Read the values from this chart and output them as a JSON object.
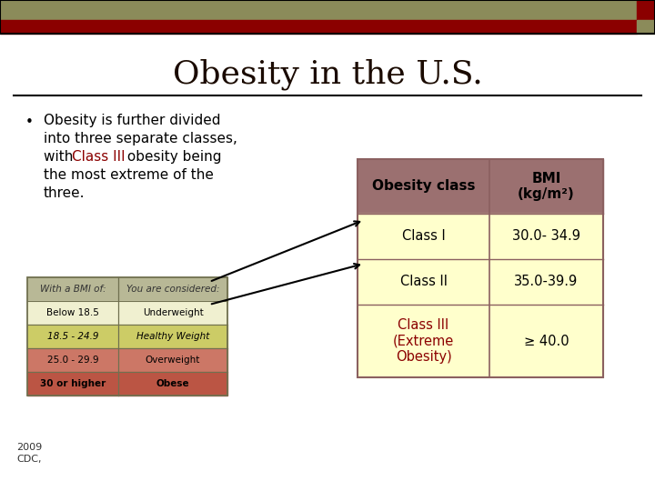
{
  "title": "Obesity in the U.S.",
  "title_color": "#1a0a00",
  "title_fontsize": 26,
  "bg_color": "#ffffff",
  "header_bar1_color": "#8b8b5a",
  "header_bar2_color": "#8b0000",
  "header_bar_small2_color": "#8b8b5a",
  "bullet_text_lines": [
    "Obesity is further divided",
    "into three separate classes,",
    "with {Class III} obesity being",
    "the most extreme of the",
    "three."
  ],
  "bullet_highlight_color": "#8b0000",
  "bullet_fontsize": 11,
  "bmi_table_header_bg": "#9b7070",
  "bmi_table_row_bg": "#ffffcc",
  "bmi_table_border": "#8b6060",
  "bmi_table_col1_header": "Obesity class",
  "bmi_table_col2_header": "BMI\n(kg/m²)",
  "bmi_table_rows": [
    [
      "Class I",
      "30.0- 34.9"
    ],
    [
      "Class II",
      "35.0-39.9"
    ],
    [
      "Class III\n(Extreme\nObesity)",
      "≥ 40.0"
    ]
  ],
  "bmi_class3_color": "#8b0000",
  "small_table_header_bg": "#b8b896",
  "small_table_header_text": "#333333",
  "small_table_rows": [
    [
      "Below 18.5",
      "Underweight",
      "#f0f0d0"
    ],
    [
      "18.5 - 24.9",
      "Healthy Weight",
      "#cccc66"
    ],
    [
      "25.0 - 29.9",
      "Overweight",
      "#cc7766"
    ],
    [
      "30 or higher",
      "Obese",
      "#bb5544"
    ]
  ],
  "small_table_bold_row": 3,
  "arrow_color": "#000000",
  "divider_color": "#000000",
  "footer_text1": "2009",
  "footer_text2": "CDC,",
  "footer_fontsize": 8
}
